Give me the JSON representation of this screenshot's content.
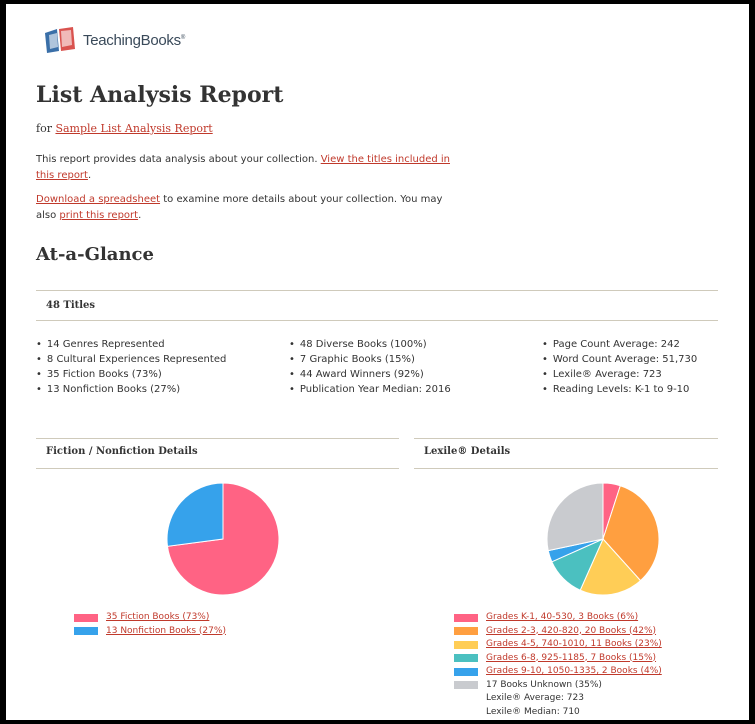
{
  "brand": {
    "logo_text": "TeachingBooks",
    "trademark": "®"
  },
  "report": {
    "title": "List Analysis Report",
    "for_prefix": "for",
    "list_name": "Sample List Analysis Report",
    "intro_text": "This report provides data analysis about your collection. ",
    "view_titles_link": "View the titles included in this report",
    "intro_end": ".",
    "download_link": "Download a spreadsheet",
    "download_text": " to examine more details about your collection. You may also ",
    "print_link": "print this report",
    "print_end": "."
  },
  "glance": {
    "heading": "At-a-Glance",
    "titles_count": "48 Titles",
    "col1": [
      "14 Genres Represented",
      "8 Cultural Experiences Represented",
      "35 Fiction Books (73%)",
      "13 Nonfiction Books (27%)"
    ],
    "col2": [
      "48 Diverse Books (100%)",
      "7 Graphic Books (15%)",
      "44 Award Winners (92%)",
      "Publication Year Median: 2016"
    ],
    "col3": [
      "Page Count Average: 242",
      "Word Count Average: 51,730",
      "Lexile® Average: 723",
      "Reading Levels: K-1 to 9-10"
    ]
  },
  "fiction_section": {
    "heading": "Fiction / Nonfiction Details"
  },
  "lexile_section": {
    "heading": "Lexile® Details",
    "unknown": "17 Books Unknown (35%)",
    "average": "Lexile® Average: 723",
    "median": "Lexile® Median: 710",
    "unknown_color": "#c9cbcf"
  },
  "chart_data": [
    {
      "type": "pie",
      "categories": [
        "35 Fiction Books (73%)",
        "13 Nonfiction Books (27%)"
      ],
      "values": [
        35,
        13
      ],
      "colors": [
        "#ff6384",
        "#36a2eb"
      ]
    },
    {
      "type": "pie",
      "categories": [
        "Grades K-1, 40-530, 3 Books (6%)",
        "Grades 2-3, 420-820, 20 Books (42%)",
        "Grades 4-5, 740-1010, 11 Books (23%)",
        "Grades 6-8, 925-1185, 7 Books (15%)",
        "Grades 9-10, 1050-1335, 2 Books (4%)",
        "17 Books Unknown (35%)"
      ],
      "values": [
        3,
        20,
        11,
        7,
        2,
        17
      ],
      "colors": [
        "#ff6384",
        "#ff9f40",
        "#ffcd56",
        "#4bc0c0",
        "#36a2eb",
        "#c9cbcf"
      ]
    }
  ]
}
